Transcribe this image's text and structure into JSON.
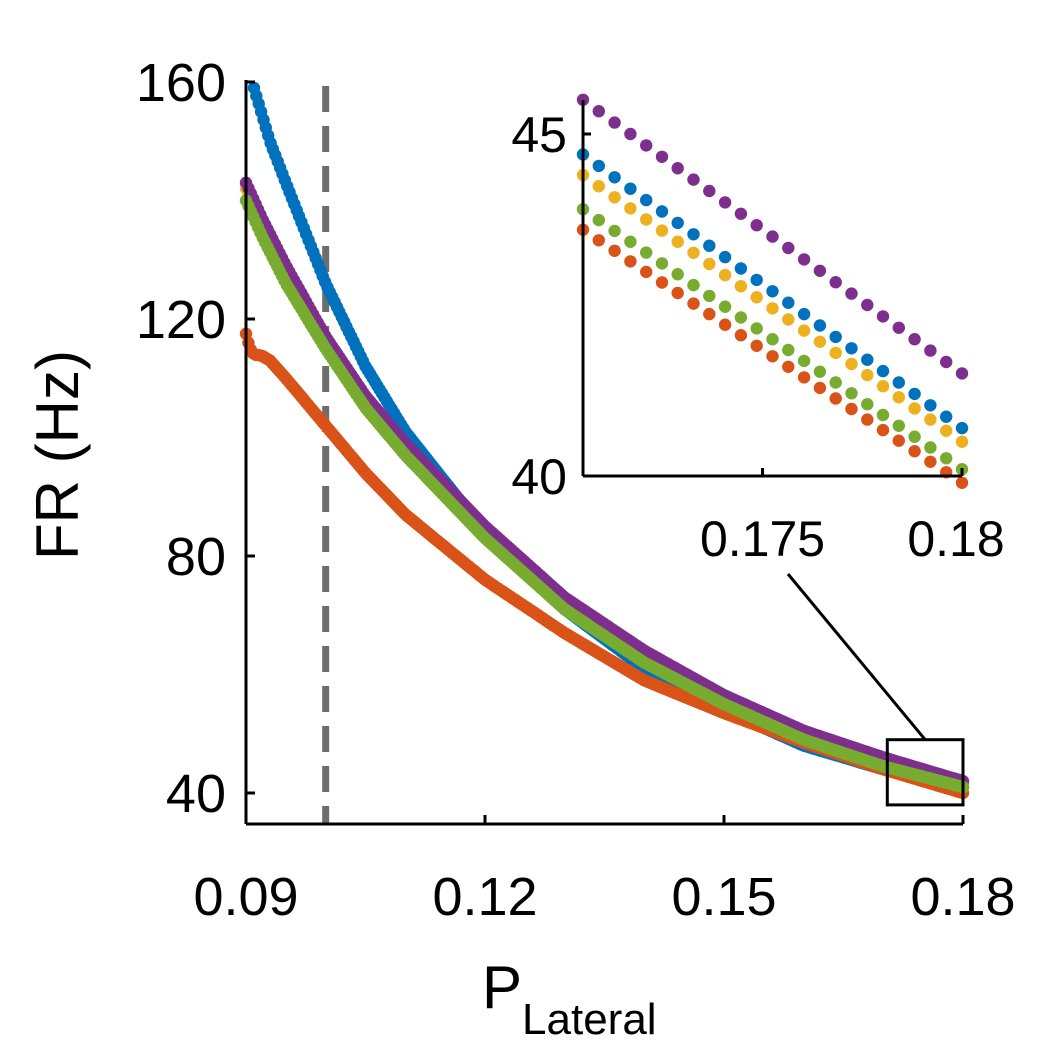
{
  "chart_data": [
    {
      "type": "scatter",
      "title": "",
      "xlabel": "P",
      "xlabel_subscript": "Lateral",
      "ylabel": "FR (Hz)",
      "xlim": [
        0.09,
        0.18
      ],
      "ylim": [
        35,
        160
      ],
      "xticks": [
        0.09,
        0.12,
        0.15,
        0.18
      ],
      "xtick_labels": [
        "0.09",
        "0.12",
        "0.15",
        "0.18"
      ],
      "yticks": [
        40,
        80,
        120,
        160
      ],
      "ytick_labels": [
        "40",
        "80",
        "120",
        "160"
      ],
      "grid": false,
      "vertical_reference_line": {
        "x": 0.1,
        "style": "dashed",
        "color": "#6e6e6e"
      },
      "zoom_box": {
        "x": [
          0.1705,
          0.18
        ],
        "y": [
          38,
          49
        ]
      },
      "series": [
        {
          "color": "#0072BD",
          "x": [
            0.091,
            0.093,
            0.095,
            0.1,
            0.105,
            0.11,
            0.12,
            0.13,
            0.14,
            0.15,
            0.16,
            0.17,
            0.18
          ],
          "y": [
            159,
            150,
            143,
            126,
            112,
            101,
            84,
            71,
            61,
            54,
            48,
            44,
            41
          ]
        },
        {
          "color": "#D95319",
          "x": [
            0.09,
            0.0905,
            0.091,
            0.092,
            0.093,
            0.095,
            0.1,
            0.105,
            0.11,
            0.12,
            0.13,
            0.14,
            0.15,
            0.16,
            0.17,
            0.18
          ],
          "y": [
            117.5,
            115,
            114,
            113.8,
            113,
            110,
            102,
            94,
            87,
            76,
            67,
            59,
            53.5,
            48.5,
            44,
            40
          ]
        },
        {
          "color": "#EDB120",
          "x": [
            0.09,
            0.092,
            0.095,
            0.1,
            0.105,
            0.11,
            0.12,
            0.13,
            0.14,
            0.15,
            0.16,
            0.17,
            0.18
          ],
          "y": [
            142,
            136,
            128,
            116,
            106,
            98,
            84,
            72,
            63,
            55.5,
            49.5,
            45,
            41.5
          ]
        },
        {
          "color": "#7E2F8E",
          "x": [
            0.09,
            0.092,
            0.095,
            0.1,
            0.105,
            0.11,
            0.12,
            0.13,
            0.14,
            0.15,
            0.16,
            0.17,
            0.18
          ],
          "y": [
            143,
            137,
            129,
            117,
            107,
            99,
            85,
            73,
            64,
            56.5,
            50.5,
            46,
            42
          ]
        },
        {
          "color": "#77AC30",
          "x": [
            0.09,
            0.092,
            0.095,
            0.1,
            0.105,
            0.11,
            0.12,
            0.13,
            0.14,
            0.15,
            0.16,
            0.17,
            0.18
          ],
          "y": [
            140,
            134,
            126,
            115,
            105,
            97,
            83,
            71,
            62,
            55,
            49,
            44.5,
            41
          ]
        }
      ]
    },
    {
      "type": "scatter",
      "title": "",
      "xlabel": "",
      "ylabel": "",
      "xlim": [
        0.1705,
        0.18
      ],
      "ylim": [
        40,
        45.5
      ],
      "xticks": [
        0.175,
        0.18
      ],
      "xtick_labels": [
        "0.175",
        "0.18"
      ],
      "yticks": [
        40,
        45
      ],
      "ytick_labels": [
        "40",
        "45"
      ],
      "grid": false,
      "series": [
        {
          "color": "#7E2F8E",
          "x": [
            0.1705,
            0.18
          ],
          "y": [
            45.5,
            41.5
          ]
        },
        {
          "color": "#0072BD",
          "x": [
            0.1705,
            0.18
          ],
          "y": [
            44.7,
            40.7
          ]
        },
        {
          "color": "#EDB120",
          "x": [
            0.1705,
            0.18
          ],
          "y": [
            44.4,
            40.5
          ]
        },
        {
          "color": "#77AC30",
          "x": [
            0.1705,
            0.18
          ],
          "y": [
            43.9,
            40.1
          ]
        },
        {
          "color": "#D95319",
          "x": [
            0.1705,
            0.18
          ],
          "y": [
            43.6,
            39.9
          ]
        }
      ]
    }
  ]
}
